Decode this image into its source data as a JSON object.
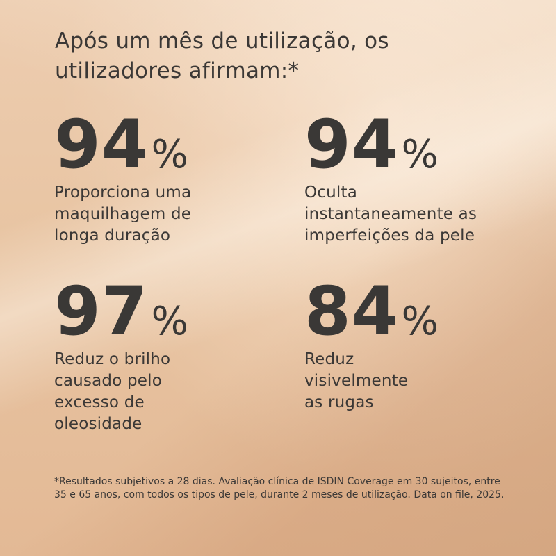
{
  "headline": "Após um mês de utilização, os utilizadores afirmam:*",
  "stats": [
    {
      "value": "94",
      "unit": "%",
      "description": "Proporciona uma\nmaquilhagem de\nlonga duração"
    },
    {
      "value": "94",
      "unit": "%",
      "description": "Oculta\ninstantaneamente as\nimperfeições da pele"
    },
    {
      "value": "97",
      "unit": "%",
      "description": "Reduz o brilho\ncausado pelo\nexcesso de\noleosidade"
    },
    {
      "value": "84",
      "unit": "%",
      "description": "Reduz\nvisivelmente\nas rugas"
    }
  ],
  "footnote": "*Resultados subjetivos a 28 dias. Avaliação clínica de ISDIN Coverage em 30 sujeitos, entre 35 e 65 anos, com todos os tipos de pele, durante 2 meses de utilização. Data on file, 2025.",
  "colors": {
    "background": "#e8c4a2",
    "text": "#3b3836"
  }
}
